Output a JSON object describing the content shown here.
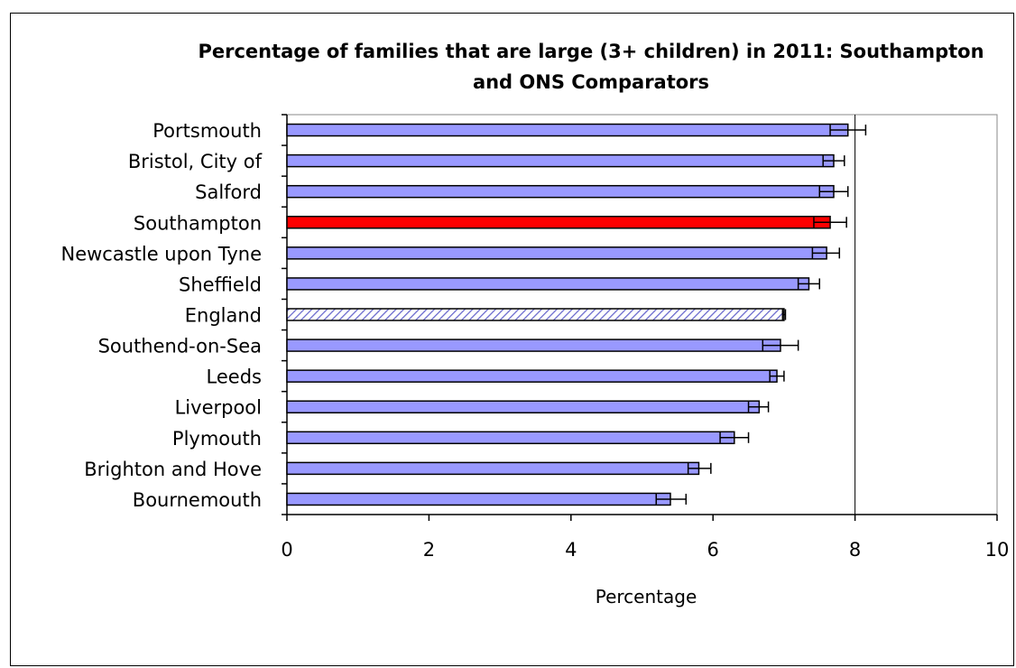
{
  "chart_data": {
    "type": "bar",
    "orientation": "horizontal",
    "title": "Percentage of families that are large (3+ children) in 2011: Southampton and ONS Comparators",
    "xlabel": "Percentage",
    "ylabel": "",
    "xlim": [
      0,
      10
    ],
    "xticks": [
      "0",
      "2",
      "4",
      "6",
      "8",
      "10"
    ],
    "grid": "vertical gridline at 8",
    "error_bars": true,
    "categories": [
      "Portsmouth",
      "Bristol, City of",
      "Salford",
      "Southampton",
      "Newcastle upon Tyne",
      "Sheffield",
      "England",
      "Southend-on-Sea",
      "Leeds",
      "Liverpool",
      "Plymouth",
      "Brighton and Hove",
      "Bournemouth"
    ],
    "values": [
      7.9,
      7.7,
      7.7,
      7.65,
      7.6,
      7.35,
      7.0,
      6.95,
      6.9,
      6.65,
      6.3,
      5.8,
      5.4
    ],
    "error_low": [
      7.65,
      7.55,
      7.5,
      7.42,
      7.4,
      7.2,
      6.98,
      6.7,
      6.8,
      6.5,
      6.1,
      5.65,
      5.2
    ],
    "error_high": [
      8.15,
      7.85,
      7.9,
      7.88,
      7.78,
      7.5,
      7.02,
      7.2,
      7.0,
      6.78,
      6.5,
      5.97,
      5.62
    ],
    "highlight": {
      "Southampton": "solid",
      "England": "hatched"
    },
    "colors": {
      "default": "#9999ff",
      "highlight": "#ff0000",
      "hatch": "#6666cc",
      "axis": "#000000"
    }
  }
}
